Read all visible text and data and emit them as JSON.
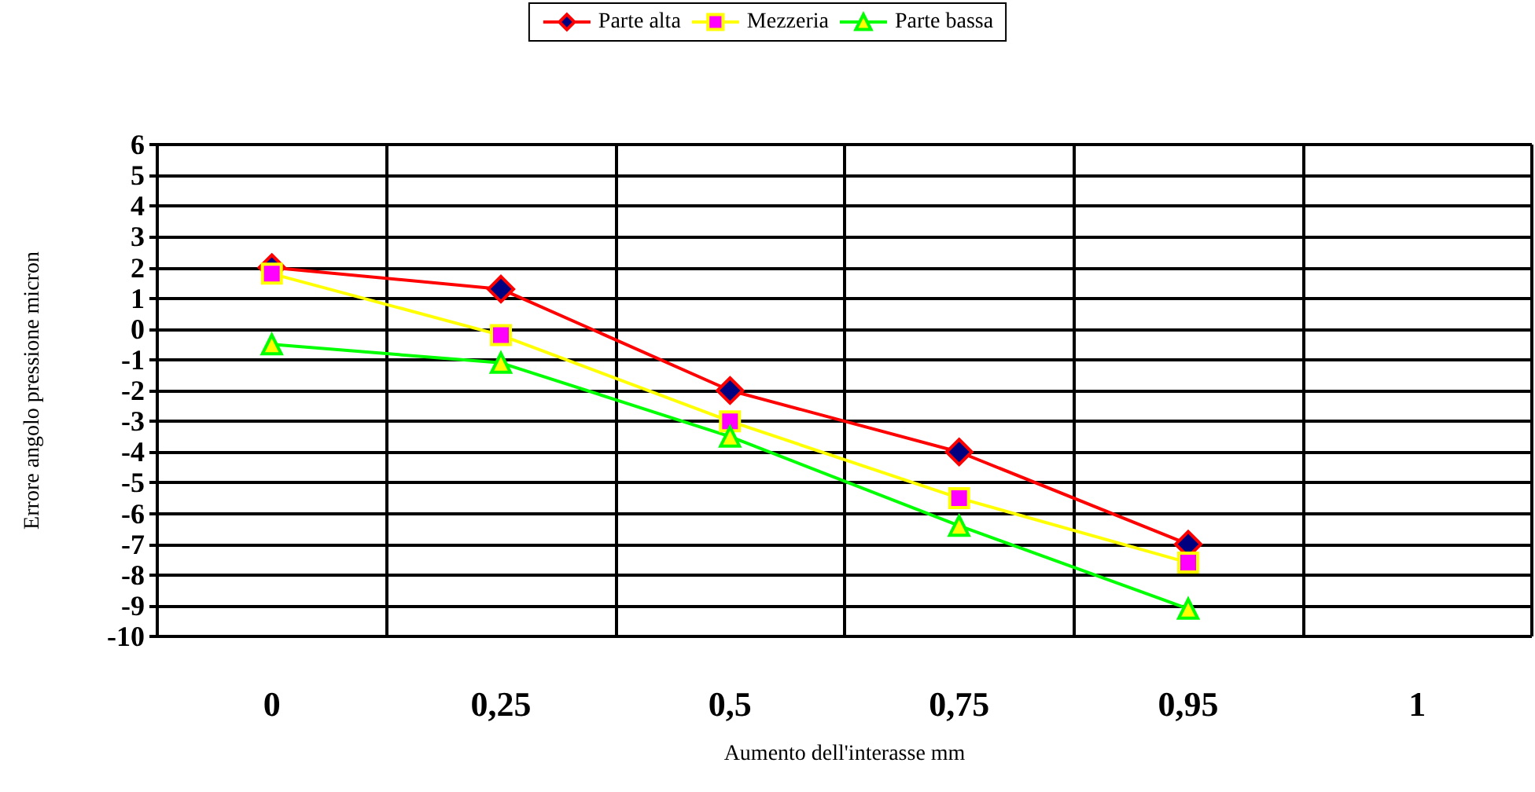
{
  "chart_data": {
    "type": "line",
    "xlabel": "Aumento dell'interasse mm",
    "ylabel": "Errore angolo pressione micron",
    "categories": [
      "0",
      "0,25",
      "0,5",
      "0,75",
      "0,95",
      "1"
    ],
    "series": [
      {
        "name": "Parte alta",
        "color": "#ff0000",
        "marker": "diamond",
        "values": [
          2,
          1.3,
          -2,
          -4,
          -7,
          null
        ]
      },
      {
        "name": "Mezzeria",
        "color": "#ffff00",
        "marker": "square",
        "values": [
          1.8,
          -0.2,
          -3,
          -5.5,
          -7.6,
          null
        ]
      },
      {
        "name": "Parte bassa",
        "color": "#00ff00",
        "marker": "triangle",
        "values": [
          -0.5,
          -1.1,
          -3.5,
          -6.4,
          -9.1,
          null
        ]
      }
    ],
    "ylim": [
      -10,
      6
    ],
    "yticks": [
      -10,
      -9,
      -8,
      -7,
      -6,
      -5,
      -4,
      -3,
      -2,
      -1,
      0,
      1,
      2,
      3,
      4,
      5,
      6
    ],
    "grid": true,
    "legend": "top"
  }
}
